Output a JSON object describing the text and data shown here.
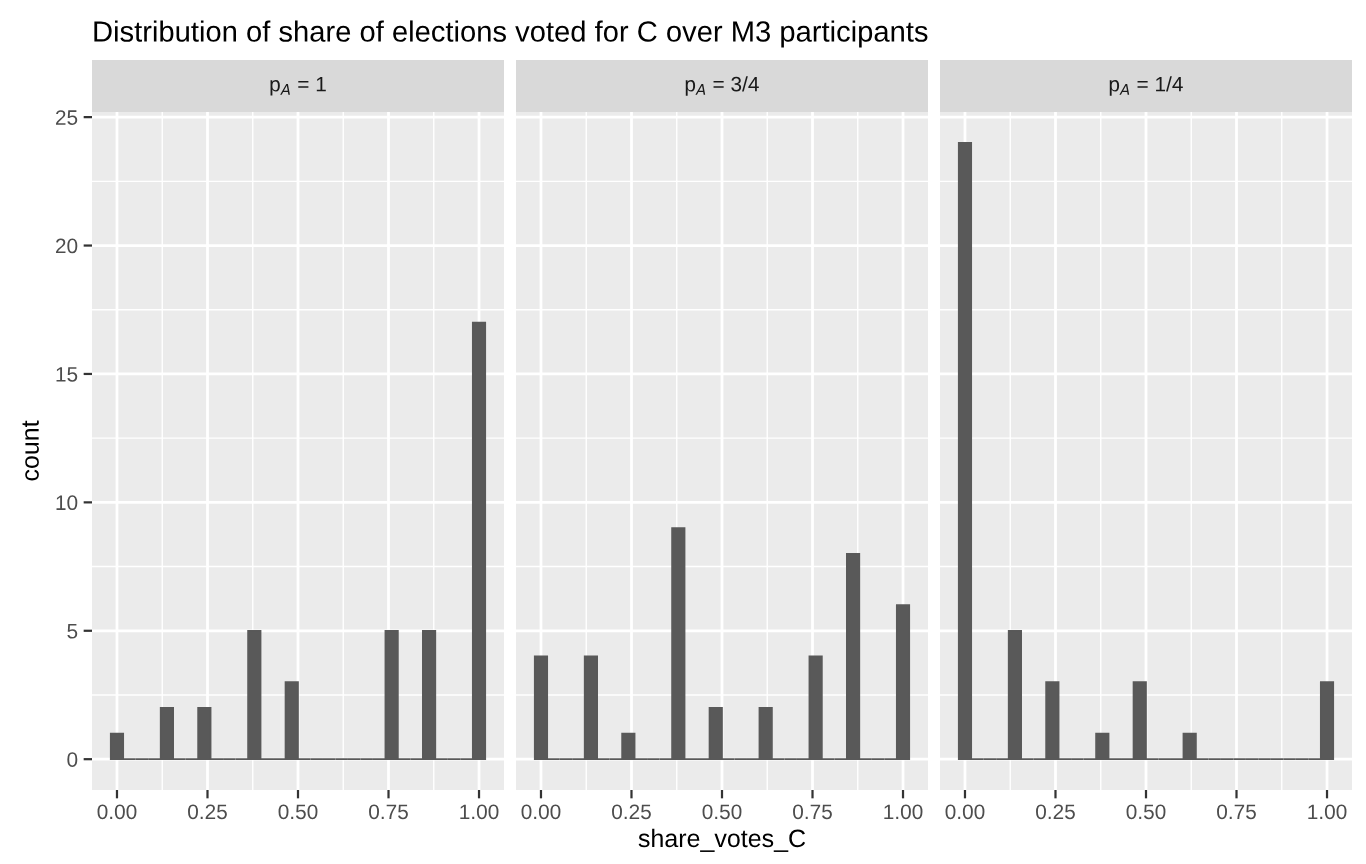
{
  "chart_data": [
    {
      "type": "histogram",
      "title": "p$_{A}$ = 1",
      "annotations": [
        "Distribution of share of elections voted for C over M3 participants"
      ],
      "ylabel": "count",
      "color": "#595959",
      "grid": true,
      "bins": [
        -0.0172,
        0.0172,
        0.0517,
        0.0862,
        0.1207,
        0.1552,
        0.1897,
        0.2241,
        0.2586,
        0.2931,
        0.3276,
        0.3621,
        0.3966,
        0.431,
        0.4655,
        0.5,
        0.5345,
        0.569,
        0.6034,
        0.6379,
        0.6724,
        0.7069,
        0.7414,
        0.7759,
        0.8103,
        0.8448,
        0.8793,
        0.9138,
        0.9483,
        0.9828,
        1.0172
      ],
      "values": [
        1,
        0,
        0,
        0,
        2,
        0,
        0,
        2,
        0,
        0,
        0,
        5,
        0,
        0,
        3,
        0,
        0,
        0,
        0,
        0,
        0,
        0,
        5,
        0,
        0,
        5,
        0,
        0,
        0,
        17
      ],
      "xlim": [
        -0.069,
        1.069
      ],
      "xticks": [
        {
          "value": 0,
          "label": "0.00"
        },
        {
          "value": 0.25,
          "label": "0.25"
        },
        {
          "value": 0.5,
          "label": "0.50"
        },
        {
          "value": 0.75,
          "label": "0.75"
        },
        {
          "value": 1,
          "label": "1.00"
        }
      ],
      "ylim": [
        -1.2,
        25.2
      ],
      "yticks": [
        0,
        5,
        10,
        15,
        20,
        25
      ]
    },
    {
      "type": "histogram",
      "title": "p$_{A}$ = 3/4",
      "xlabel": "share_votes_C",
      "color": "#595959",
      "grid": true,
      "tick_labels": "x",
      "bins": [
        -0.0172,
        0.0172,
        0.0517,
        0.0862,
        0.1207,
        0.1552,
        0.1897,
        0.2241,
        0.2586,
        0.2931,
        0.3276,
        0.3621,
        0.3966,
        0.431,
        0.4655,
        0.5,
        0.5345,
        0.569,
        0.6034,
        0.6379,
        0.6724,
        0.7069,
        0.7414,
        0.7759,
        0.8103,
        0.8448,
        0.8793,
        0.9138,
        0.9483,
        0.9828,
        1.0172
      ],
      "values": [
        4,
        0,
        0,
        0,
        4,
        0,
        0,
        1,
        0,
        0,
        0,
        9,
        0,
        0,
        2,
        0,
        0,
        0,
        2,
        0,
        0,
        0,
        4,
        0,
        0,
        8,
        0,
        0,
        0,
        6
      ],
      "xlim": [
        -0.069,
        1.069
      ],
      "xticks": [
        {
          "value": 0,
          "label": "0.00"
        },
        {
          "value": 0.25,
          "label": "0.25"
        },
        {
          "value": 0.5,
          "label": "0.50"
        },
        {
          "value": 0.75,
          "label": "0.75"
        },
        {
          "value": 1,
          "label": "1.00"
        }
      ],
      "ylim": [
        -1.2,
        25.2
      ],
      "yticks": [
        0,
        5,
        10,
        15,
        20,
        25
      ]
    },
    {
      "type": "histogram",
      "title": "p$_{A}$ = 1/4",
      "color": "#595959",
      "grid": true,
      "tick_labels": "x",
      "bins": [
        -0.0172,
        0.0172,
        0.0517,
        0.0862,
        0.1207,
        0.1552,
        0.1897,
        0.2241,
        0.2586,
        0.2931,
        0.3276,
        0.3621,
        0.3966,
        0.431,
        0.4655,
        0.5,
        0.5345,
        0.569,
        0.6034,
        0.6379,
        0.6724,
        0.7069,
        0.7414,
        0.7759,
        0.8103,
        0.8448,
        0.8793,
        0.9138,
        0.9483,
        0.9828,
        1.0172
      ],
      "values": [
        24,
        0,
        0,
        0,
        5,
        0,
        0,
        3,
        0,
        0,
        0,
        1,
        0,
        0,
        3,
        0,
        0,
        0,
        1,
        0,
        0,
        0,
        0,
        0,
        0,
        0,
        0,
        0,
        0,
        3
      ],
      "xlim": [
        -0.069,
        1.069
      ],
      "xticks": [
        {
          "value": 0,
          "label": "0.00"
        },
        {
          "value": 0.25,
          "label": "0.25"
        },
        {
          "value": 0.5,
          "label": "0.50"
        },
        {
          "value": 0.75,
          "label": "0.75"
        },
        {
          "value": 1,
          "label": "1.00"
        }
      ],
      "ylim": [
        -1.2,
        25.2
      ],
      "yticks": [
        0,
        5,
        10,
        15,
        20,
        25
      ]
    }
  ]
}
